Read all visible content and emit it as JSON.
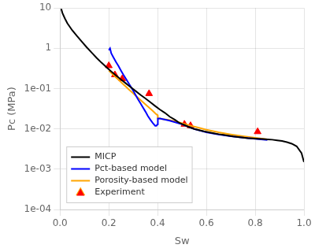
{
  "chart_data": {
    "type": "line",
    "xlabel": "Sw",
    "ylabel": "Pc (MPa)",
    "log": "y",
    "grid": true,
    "legend": "lower left",
    "xlim": [
      0,
      1
    ],
    "ylim": [
      0.0001,
      10
    ],
    "xticks": [
      {
        "value": 0,
        "label": "0.0"
      },
      0.2,
      0.4,
      0.6,
      0.8,
      {
        "value": 1,
        "label": "1.0"
      }
    ],
    "yticks": [
      {
        "value": 0.0001,
        "label": "1e-04"
      },
      {
        "value": 0.001,
        "label": "1e-03"
      },
      {
        "value": 0.01,
        "label": "1e-02"
      },
      {
        "value": 0.1,
        "label": "1e-01"
      },
      1,
      10
    ],
    "series": [
      {
        "name": "MICP",
        "type": "line",
        "color": "black",
        "line_style": "solid",
        "x": [
          0.005,
          0.01,
          0.02,
          0.03,
          0.05,
          0.07,
          0.09,
          0.11,
          0.13,
          0.15,
          0.17,
          0.19,
          0.21,
          0.23,
          0.25,
          0.27,
          0.29,
          0.31,
          0.33,
          0.35,
          0.37,
          0.39,
          0.41,
          0.43,
          0.45,
          0.47,
          0.49,
          0.51,
          0.53,
          0.55,
          0.57,
          0.59,
          0.61,
          0.63,
          0.65,
          0.67,
          0.69,
          0.71,
          0.73,
          0.75,
          0.77,
          0.79,
          0.81,
          0.83,
          0.85,
          0.87,
          0.89,
          0.91,
          0.93,
          0.95,
          0.97,
          0.99,
          1.0
        ],
        "values": [
          9.5,
          7.5,
          5.5,
          4.2,
          2.8,
          2.0,
          1.45,
          1.05,
          0.78,
          0.58,
          0.44,
          0.34,
          0.265,
          0.21,
          0.168,
          0.135,
          0.108,
          0.087,
          0.07,
          0.057,
          0.046,
          0.037,
          0.03,
          0.025,
          0.02,
          0.017,
          0.014,
          0.0125,
          0.011,
          0.01,
          0.0093,
          0.0087,
          0.0082,
          0.0078,
          0.0074,
          0.0071,
          0.0068,
          0.0065,
          0.0063,
          0.0061,
          0.0059,
          0.0058,
          0.0057,
          0.0056,
          0.0055,
          0.0054,
          0.0052,
          0.005,
          0.0047,
          0.0043,
          0.0037,
          0.0025,
          0.0015
        ]
      },
      {
        "name": "Pct-based model",
        "type": "line",
        "color": "#0000ff",
        "line_style": "solid",
        "x": [
          0.2,
          0.205,
          0.21,
          0.22,
          0.23,
          0.24,
          0.25,
          0.26,
          0.27,
          0.28,
          0.29,
          0.3,
          0.31,
          0.32,
          0.33,
          0.34,
          0.35,
          0.36,
          0.37,
          0.38,
          0.39,
          0.395,
          0.4,
          0.401,
          0.41,
          0.45,
          0.5,
          0.55,
          0.6,
          0.65,
          0.7,
          0.75,
          0.8,
          0.85
        ],
        "values": [
          0.9,
          1.0,
          0.75,
          0.58,
          0.45,
          0.36,
          0.28,
          0.22,
          0.175,
          0.14,
          0.112,
          0.088,
          0.069,
          0.054,
          0.043,
          0.034,
          0.027,
          0.021,
          0.017,
          0.014,
          0.012,
          0.012,
          0.013,
          0.018,
          0.018,
          0.016,
          0.013,
          0.01,
          0.0082,
          0.0073,
          0.0066,
          0.0061,
          0.0057,
          0.0053
        ]
      },
      {
        "name": "Porosity-based model",
        "type": "line",
        "color": "#ffa500",
        "line_style": "solid",
        "x": [
          0.2,
          0.21,
          0.22,
          0.23,
          0.24,
          0.25,
          0.26,
          0.27,
          0.28,
          0.29,
          0.3,
          0.31,
          0.32,
          0.34,
          0.36,
          0.38,
          0.395,
          0.4,
          0.401,
          0.41,
          0.42,
          0.44,
          0.46,
          0.48,
          0.5,
          0.52,
          0.54,
          0.56,
          0.6,
          0.65,
          0.7,
          0.75,
          0.8,
          0.85
        ],
        "values": [
          0.28,
          0.245,
          0.215,
          0.188,
          0.165,
          0.145,
          0.127,
          0.112,
          0.098,
          0.086,
          0.076,
          0.067,
          0.059,
          0.046,
          0.036,
          0.028,
          0.023,
          0.022,
          0.018,
          0.018,
          0.0175,
          0.017,
          0.016,
          0.015,
          0.0138,
          0.0128,
          0.0118,
          0.011,
          0.0095,
          0.0082,
          0.0073,
          0.0066,
          0.006,
          0.0055
        ]
      },
      {
        "name": "Experiment",
        "type": "scatter",
        "color": "red",
        "marker": "triangle",
        "x": [
          0.2,
          0.225,
          0.255,
          0.365,
          0.51,
          0.535,
          0.81
        ],
        "values": [
          0.37,
          0.22,
          0.175,
          0.075,
          0.013,
          0.012,
          0.0085
        ]
      }
    ]
  }
}
